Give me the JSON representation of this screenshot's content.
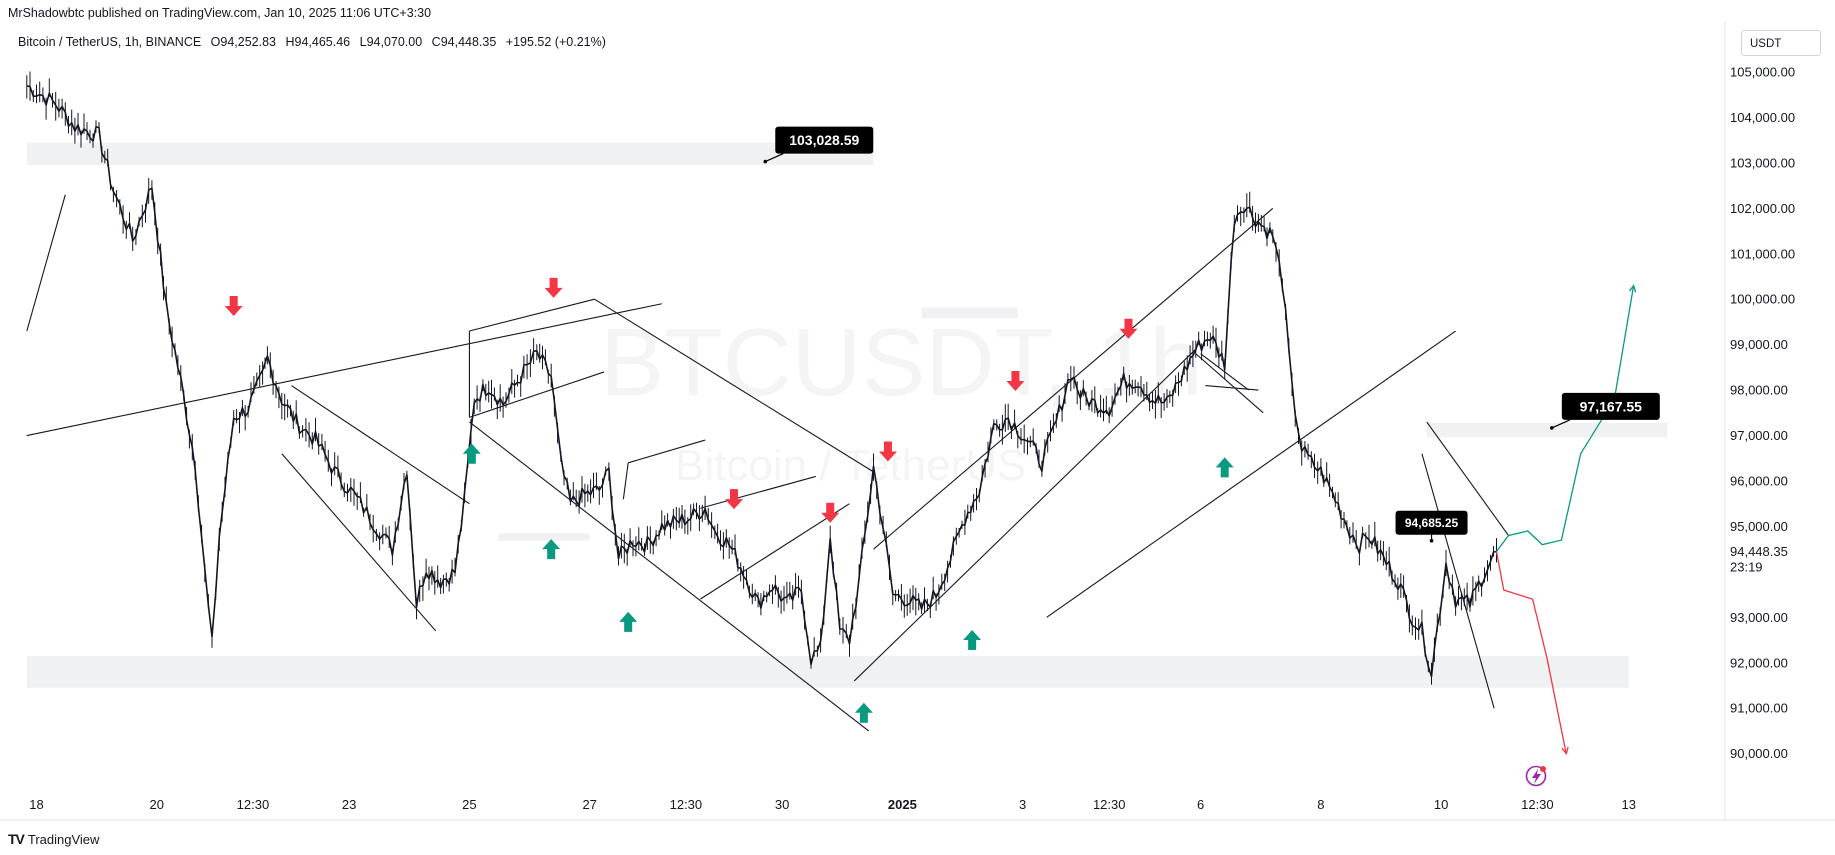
{
  "header": {
    "publisher": "MrShadowbtc published on TradingView.com, Jan 10, 2025 11:06 UTC+3:30",
    "symbol": "Bitcoin / TetherUS, 1h, BINANCE",
    "open": "O94,252.83",
    "high": "H94,465.46",
    "low": "L94,070.00",
    "close": "C94,448.35",
    "change": "+195.52 (+0.21%)",
    "currency": "USDT"
  },
  "watermark": {
    "ticker": "BTCUSDT, 1h",
    "name": "Bitcoin / TetherUS"
  },
  "footer": {
    "brand": "TradingView",
    "brand_mark": "TV"
  },
  "colors": {
    "up_arrow": "#089981",
    "down_arrow": "#f23645",
    "projection_up": "#089981",
    "projection_down": "#f23645",
    "zone": "#f0f1f3",
    "price_label_bg": "#000000"
  },
  "chart_data": {
    "type": "line",
    "title": "Bitcoin / TetherUS, 1h, BINANCE",
    "ylim": [
      89200,
      106100
    ],
    "y_ticks": [
      {
        "value": 105000,
        "label": "105,000.00"
      },
      {
        "value": 104000,
        "label": "104,000.00"
      },
      {
        "value": 103000,
        "label": "103,000.00"
      },
      {
        "value": 102000,
        "label": "102,000.00"
      },
      {
        "value": 101000,
        "label": "101,000.00"
      },
      {
        "value": 100000,
        "label": "100,000.00"
      },
      {
        "value": 99000,
        "label": "99,000.00"
      },
      {
        "value": 98000,
        "label": "98,000.00"
      },
      {
        "value": 97000,
        "label": "97,000.00"
      },
      {
        "value": 96000,
        "label": "96,000.00"
      },
      {
        "value": 95000,
        "label": "95,000.00"
      },
      {
        "value": 93000,
        "label": "93,000.00"
      },
      {
        "value": 92000,
        "label": "92,000.00"
      },
      {
        "value": 91000,
        "label": "91,000.00"
      },
      {
        "value": 90000,
        "label": "90,000.00"
      }
    ],
    "x_ticks": [
      {
        "label": "18",
        "t": 0.2,
        "bold": false
      },
      {
        "label": "20",
        "t": 2.7,
        "bold": false
      },
      {
        "label": "12:30",
        "t": 4.7,
        "bold": false
      },
      {
        "label": "23",
        "t": 6.7,
        "bold": false
      },
      {
        "label": "25",
        "t": 9.2,
        "bold": false
      },
      {
        "label": "27",
        "t": 11.7,
        "bold": false
      },
      {
        "label": "12:30",
        "t": 13.7,
        "bold": false
      },
      {
        "label": "30",
        "t": 15.7,
        "bold": false
      },
      {
        "label": "2025",
        "t": 18.2,
        "bold": true
      },
      {
        "label": "3",
        "t": 20.7,
        "bold": false
      },
      {
        "label": "12:30",
        "t": 22.5,
        "bold": false
      },
      {
        "label": "6",
        "t": 24.4,
        "bold": false
      },
      {
        "label": "8",
        "t": 26.9,
        "bold": false
      },
      {
        "label": "10",
        "t": 29.4,
        "bold": false
      },
      {
        "label": "12:30",
        "t": 31.4,
        "bold": false
      },
      {
        "label": "13",
        "t": 33.3,
        "bold": false
      }
    ],
    "xlim": [
      -0.35,
      35.3
    ],
    "series": [
      {
        "points": [
          [
            0,
            104700
          ],
          [
            0.6,
            104300
          ],
          [
            1.0,
            103800
          ],
          [
            1.5,
            103600
          ],
          [
            1.8,
            102400
          ],
          [
            2.2,
            101300
          ],
          [
            2.6,
            102500
          ],
          [
            2.9,
            99800
          ],
          [
            3.2,
            98200
          ],
          [
            3.5,
            96400
          ],
          [
            3.7,
            94000
          ],
          [
            3.85,
            92400
          ],
          [
            4.0,
            94800
          ],
          [
            4.3,
            97400
          ],
          [
            4.6,
            97600
          ],
          [
            4.9,
            98300
          ],
          [
            5.0,
            98700
          ],
          [
            5.3,
            97800
          ],
          [
            5.6,
            97300
          ],
          [
            6.0,
            96900
          ],
          [
            6.4,
            96200
          ],
          [
            6.8,
            95700
          ],
          [
            7.2,
            95100
          ],
          [
            7.6,
            94500
          ],
          [
            7.9,
            96300
          ],
          [
            8.1,
            93300
          ],
          [
            8.3,
            94100
          ],
          [
            8.6,
            93800
          ],
          [
            8.9,
            94000
          ],
          [
            9.1,
            95600
          ],
          [
            9.3,
            97800
          ],
          [
            9.6,
            98100
          ],
          [
            9.9,
            97700
          ],
          [
            10.2,
            98200
          ],
          [
            10.6,
            98800
          ],
          [
            10.9,
            98300
          ],
          [
            11.1,
            96400
          ],
          [
            11.3,
            95500
          ],
          [
            11.6,
            95700
          ],
          [
            11.9,
            95800
          ],
          [
            12.1,
            96200
          ],
          [
            12.3,
            94300
          ],
          [
            12.6,
            94700
          ],
          [
            12.9,
            94600
          ],
          [
            13.2,
            95000
          ],
          [
            13.5,
            95100
          ],
          [
            13.8,
            95200
          ],
          [
            14.1,
            95400
          ],
          [
            14.3,
            94900
          ],
          [
            14.6,
            94600
          ],
          [
            14.9,
            94000
          ],
          [
            15.2,
            93300
          ],
          [
            15.5,
            93700
          ],
          [
            15.8,
            93300
          ],
          [
            16.1,
            93600
          ],
          [
            16.3,
            92100
          ],
          [
            16.5,
            92300
          ],
          [
            16.7,
            94800
          ],
          [
            16.9,
            92700
          ],
          [
            17.1,
            92500
          ],
          [
            17.3,
            93800
          ],
          [
            17.6,
            96300
          ],
          [
            17.8,
            95000
          ],
          [
            18.0,
            93500
          ],
          [
            18.3,
            93400
          ],
          [
            18.6,
            93200
          ],
          [
            18.9,
            93500
          ],
          [
            19.2,
            94300
          ],
          [
            19.5,
            95200
          ],
          [
            19.8,
            95800
          ],
          [
            20.1,
            97200
          ],
          [
            20.4,
            97400
          ],
          [
            20.8,
            96900
          ],
          [
            21.1,
            96400
          ],
          [
            21.4,
            97300
          ],
          [
            21.7,
            98400
          ],
          [
            21.9,
            97900
          ],
          [
            22.2,
            97700
          ],
          [
            22.5,
            97600
          ],
          [
            22.8,
            98200
          ],
          [
            23.1,
            98200
          ],
          [
            23.4,
            97800
          ],
          [
            23.7,
            97700
          ],
          [
            24.0,
            98300
          ],
          [
            24.3,
            98900
          ],
          [
            24.6,
            99200
          ],
          [
            24.9,
            98600
          ],
          [
            25.1,
            101800
          ],
          [
            25.3,
            102100
          ],
          [
            25.6,
            101700
          ],
          [
            25.9,
            101400
          ],
          [
            26.1,
            100400
          ],
          [
            26.3,
            98000
          ],
          [
            26.5,
            96700
          ],
          [
            26.7,
            96400
          ],
          [
            26.9,
            96200
          ],
          [
            27.2,
            95600
          ],
          [
            27.5,
            94900
          ],
          [
            27.7,
            94600
          ],
          [
            27.9,
            94800
          ],
          [
            28.2,
            94300
          ],
          [
            28.5,
            93800
          ],
          [
            28.8,
            93000
          ],
          [
            29.0,
            92700
          ],
          [
            29.2,
            91800
          ],
          [
            29.5,
            94200
          ],
          [
            29.7,
            93400
          ],
          [
            30.0,
            93300
          ],
          [
            30.3,
            94000
          ],
          [
            30.55,
            94448
          ]
        ]
      },
      {
        "name": "bullish projection",
        "points": [
          [
            30.55,
            94448
          ],
          [
            30.8,
            94800
          ],
          [
            31.2,
            94900
          ],
          [
            31.5,
            94600
          ],
          [
            31.9,
            94700
          ],
          [
            32.3,
            96600
          ],
          [
            33.0,
            97800
          ],
          [
            33.4,
            100300
          ]
        ]
      },
      {
        "name": "bearish projection",
        "points": [
          [
            30.55,
            94448
          ],
          [
            30.7,
            93600
          ],
          [
            31.0,
            93500
          ],
          [
            31.3,
            93400
          ],
          [
            31.6,
            92100
          ],
          [
            32.0,
            90000
          ]
        ]
      }
    ],
    "annotations": {
      "price_labels": [
        {
          "text": "103,028.59",
          "t": 15.35,
          "v": 103028.59
        },
        {
          "text": "97,167.55",
          "t": 31.7,
          "v": 97167.55
        },
        {
          "text": "94,685.25",
          "t": 29.2,
          "v": 94685.25
        }
      ],
      "last_price": {
        "text": "94,448.35",
        "countdown": "23:19",
        "v": 94448.35
      }
    }
  }
}
